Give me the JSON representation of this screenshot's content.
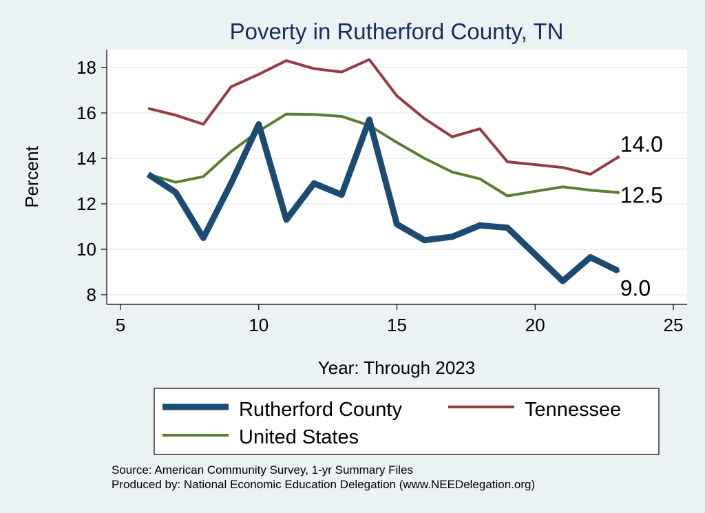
{
  "chart_data": {
    "type": "line",
    "title": "Poverty in Rutherford County, TN",
    "xlabel": "Year: Through 2023",
    "ylabel": "Percent",
    "xlim": [
      5,
      25
    ],
    "ylim": [
      7.5,
      18.8
    ],
    "x_ticks": [
      "5",
      "10",
      "15",
      "20",
      "25"
    ],
    "y_ticks": [
      "8",
      "10",
      "12",
      "14",
      "16",
      "18"
    ],
    "grid": true,
    "series": [
      {
        "name": "Rutherford County",
        "color": "#1b4a72",
        "x": [
          6,
          7,
          8,
          9,
          10,
          11,
          12,
          13,
          14,
          15,
          16,
          17,
          18,
          19,
          21,
          22,
          23
        ],
        "values": [
          13.3,
          12.5,
          10.5,
          12.9,
          15.5,
          11.3,
          12.9,
          12.4,
          15.7,
          11.1,
          10.4,
          10.55,
          11.05,
          10.95,
          8.6,
          9.65,
          9.05
        ]
      },
      {
        "name": "Tennessee",
        "color": "#983a43",
        "x": [
          6,
          7,
          8,
          9,
          10,
          11,
          12,
          13,
          14,
          15,
          16,
          17,
          18,
          19,
          21,
          22,
          23
        ],
        "values": [
          16.2,
          15.9,
          15.5,
          17.15,
          17.7,
          18.3,
          17.95,
          17.8,
          18.35,
          16.75,
          15.75,
          14.95,
          15.3,
          13.85,
          13.6,
          13.3,
          14.05
        ]
      },
      {
        "name": "United States",
        "color": "#5b7d30",
        "x": [
          6,
          7,
          8,
          9,
          10,
          11,
          12,
          13,
          14,
          15,
          16,
          17,
          18,
          19,
          21,
          22,
          23
        ],
        "values": [
          13.3,
          12.95,
          13.2,
          14.3,
          15.2,
          15.95,
          15.93,
          15.85,
          15.45,
          14.7,
          14.0,
          13.4,
          13.1,
          12.35,
          12.75,
          12.6,
          12.5
        ]
      }
    ],
    "end_labels": [
      {
        "series": "Tennessee",
        "text": "14.0"
      },
      {
        "series": "United States",
        "text": "12.5"
      },
      {
        "series": "Rutherford County",
        "text": "9.0"
      }
    ],
    "legend": {
      "position": "bottom",
      "entries": [
        "Rutherford County",
        "Tennessee",
        "United States"
      ]
    },
    "notes": [
      "Source: American Community Survey, 1-yr Summary Files",
      "Produced by: National Economic Education Delegation (www.NEEDelegation.org)"
    ]
  },
  "colors": {
    "background": "#eaf2f3",
    "plot_background": "#ffffff",
    "grid": "#e6eeef",
    "title": "#1a2b5f"
  }
}
